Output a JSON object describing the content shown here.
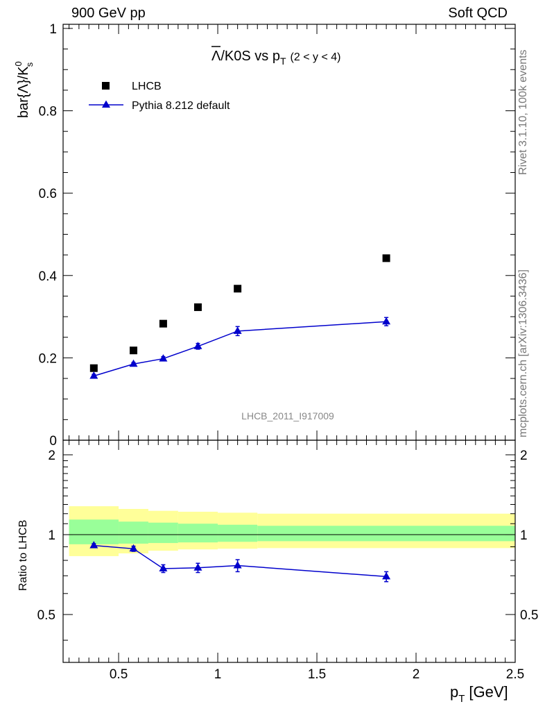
{
  "header": {
    "energy_label": "900 GeV pp",
    "process_label": "Soft QCD"
  },
  "side_labels": {
    "rivet_version": "Rivet 3.1.10,  100k events",
    "source": "mcplots.cern.ch [arXiv:1306.3436]"
  },
  "chart_data": [
    {
      "type": "scatter",
      "panel": "main",
      "title": {
        "main": "Λ/K0S vs p",
        "sub": "T",
        "range": "(2 < y < 4)"
      },
      "ylabel": "bar{Λ}/K",
      "ylabel_sup": "0",
      "ylabel_sub": "s",
      "analysis_label": "LHCB_2011_I917009",
      "xlim": [
        0.22,
        2.5
      ],
      "ylim": [
        0,
        1.01
      ],
      "yticks": [
        0,
        0.2,
        0.4,
        0.6,
        0.8,
        1
      ],
      "ytick_labels": [
        "0",
        "0.2",
        "0.4",
        "0.6",
        "0.8",
        "1"
      ],
      "legend_position": "top-left",
      "series": [
        {
          "name": "LHCB",
          "marker": "square",
          "color": "#000000",
          "x": [
            0.375,
            0.575,
            0.725,
            0.9,
            1.1,
            1.85
          ],
          "y": [
            0.175,
            0.218,
            0.283,
            0.323,
            0.368,
            0.442
          ]
        },
        {
          "name": "Pythia 8.212 default",
          "marker": "triangle",
          "line": true,
          "color": "#0000cc",
          "x": [
            0.375,
            0.575,
            0.725,
            0.9,
            1.1,
            1.85
          ],
          "y": [
            0.156,
            0.185,
            0.198,
            0.228,
            0.265,
            0.288
          ],
          "yerr": [
            0.004,
            0.004,
            0.005,
            0.007,
            0.011,
            0.01
          ]
        }
      ]
    },
    {
      "type": "line",
      "panel": "ratio",
      "ylabel": "Ratio to LHCB",
      "xlabel": "p",
      "xlabel_sub": "T",
      "xlabel_unit": "[GeV]",
      "xlim": [
        0.22,
        2.5
      ],
      "ylim": [
        0.33,
        2.27
      ],
      "xticks": [
        0.5,
        1,
        1.5,
        2,
        2.5
      ],
      "xtick_labels": [
        "0.5",
        "1",
        "1.5",
        "2",
        "2.5"
      ],
      "yticks": [
        0.5,
        1,
        2
      ],
      "ytick_labels": [
        "0.5",
        "1",
        "2"
      ],
      "bands": {
        "edges": [
          0.25,
          0.5,
          0.65,
          0.8,
          1.0,
          1.2,
          2.5
        ],
        "inner": {
          "color": "#99ff99",
          "lo": [
            0.92,
            0.925,
            0.93,
            0.935,
            0.94,
            0.945
          ],
          "hi": [
            1.14,
            1.12,
            1.11,
            1.1,
            1.09,
            1.08
          ]
        },
        "outer": {
          "color": "#ffff99",
          "lo": [
            0.83,
            0.85,
            0.87,
            0.88,
            0.885,
            0.89
          ],
          "hi": [
            1.28,
            1.25,
            1.23,
            1.22,
            1.21,
            1.2
          ]
        }
      },
      "reference": 1,
      "series": [
        {
          "name": "Pythia 8.212 default",
          "marker": "triangle",
          "color": "#0000cc",
          "x": [
            0.375,
            0.575,
            0.725,
            0.9,
            1.1,
            1.85
          ],
          "y": [
            0.91,
            0.885,
            0.745,
            0.75,
            0.765,
            0.695
          ],
          "yerr": [
            0.015,
            0.02,
            0.025,
            0.03,
            0.04,
            0.03
          ]
        }
      ]
    }
  ]
}
